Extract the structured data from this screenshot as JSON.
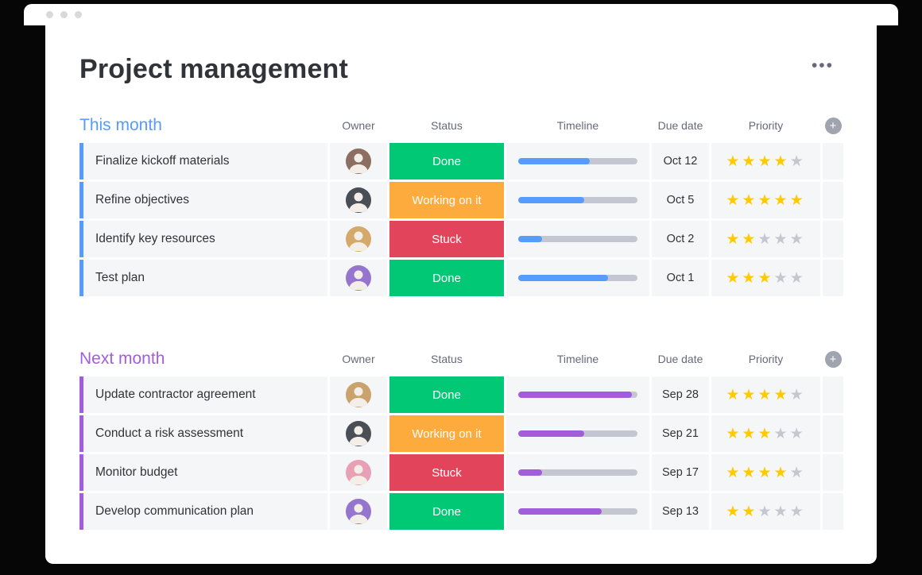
{
  "window": {
    "title": "Project management",
    "menu": "•••"
  },
  "table": {
    "columns": [
      "Owner",
      "Status",
      "Timeline",
      "Due date",
      "Priority"
    ],
    "add_column_label": "+"
  },
  "colors": {
    "done": "#00c875",
    "working_on_it": "#fdab3d",
    "stuck": "#e2445c",
    "this_month_accent": "#579bfc",
    "next_month_accent": "#a25ddc",
    "star_filled": "#ffcb00",
    "star_empty": "#c4c7d1",
    "timeline_track": "#c4c7d1"
  },
  "groups": [
    {
      "title": "This month",
      "color": "#579bfc",
      "rows": [
        {
          "task": "Finalize kickoff materials",
          "status": "Done",
          "status_color": "#00c875",
          "timeline_pct": 60,
          "due": "Oct 12",
          "stars": 4,
          "avatar_bg": "#8d6e63"
        },
        {
          "task": "Refine objectives",
          "status": "Working on it",
          "status_color": "#fdab3d",
          "timeline_pct": 55,
          "due": "Oct 5",
          "stars": 5,
          "avatar_bg": "#4a4f57"
        },
        {
          "task": "Identify key resources",
          "status": "Stuck",
          "status_color": "#e2445c",
          "timeline_pct": 20,
          "due": "Oct 2",
          "stars": 2,
          "avatar_bg": "#d4a96a"
        },
        {
          "task": "Test plan",
          "status": "Done",
          "status_color": "#00c875",
          "timeline_pct": 75,
          "due": "Oct 1",
          "stars": 3,
          "avatar_bg": "#9575cd"
        }
      ]
    },
    {
      "title": "Next month",
      "color": "#a25ddc",
      "rows": [
        {
          "task": "Update contractor agreement",
          "status": "Done",
          "status_color": "#00c875",
          "timeline_pct": 95,
          "due": "Sep 28",
          "stars": 4,
          "avatar_bg": "#c9a36b"
        },
        {
          "task": "Conduct a risk assessment",
          "status": "Working on it",
          "status_color": "#fdab3d",
          "timeline_pct": 55,
          "due": "Sep 21",
          "stars": 3,
          "avatar_bg": "#4a4f57"
        },
        {
          "task": "Monitor budget",
          "status": "Stuck",
          "status_color": "#e2445c",
          "timeline_pct": 20,
          "due": "Sep 17",
          "stars": 4,
          "avatar_bg": "#e8a0b4"
        },
        {
          "task": "Develop communication plan",
          "status": "Done",
          "status_color": "#00c875",
          "timeline_pct": 70,
          "due": "Sep 13",
          "stars": 2,
          "avatar_bg": "#9575cd"
        }
      ]
    }
  ]
}
